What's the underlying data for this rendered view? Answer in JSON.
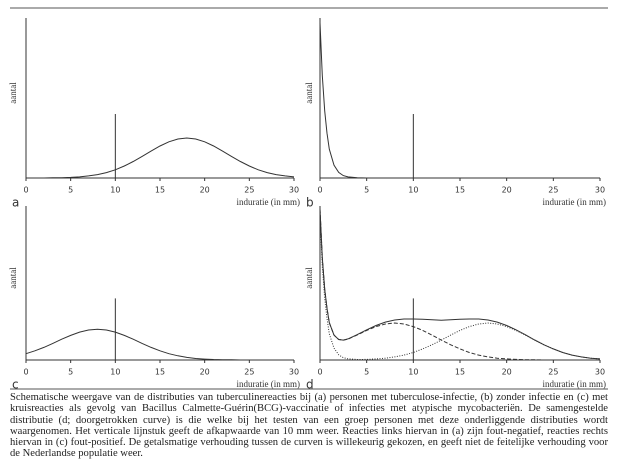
{
  "chart_data": [
    {
      "type": "line",
      "label": "a",
      "x_label": "induratie (in mm)",
      "y_label": "aantal",
      "x": [
        0,
        1,
        2,
        3,
        4,
        5,
        6,
        7,
        8,
        9,
        10,
        11,
        12,
        13,
        14,
        15,
        16,
        17,
        18,
        19,
        20,
        21,
        22,
        23,
        24,
        25,
        26,
        27,
        28,
        29,
        30
      ],
      "series": [
        {
          "dash": "solid",
          "color": "#333333",
          "values": [
            0,
            0,
            0,
            0.001,
            0.002,
            0.004,
            0.007,
            0.013,
            0.021,
            0.034,
            0.051,
            0.075,
            0.103,
            0.135,
            0.168,
            0.2,
            0.226,
            0.244,
            0.25,
            0.244,
            0.226,
            0.2,
            0.168,
            0.135,
            0.103,
            0.075,
            0.051,
            0.034,
            0.021,
            0.013,
            0.007
          ]
        }
      ],
      "xlim": [
        0,
        30
      ],
      "xticks": [
        0,
        5,
        10,
        15,
        20,
        25,
        30
      ],
      "ylim": [
        0,
        1
      ],
      "cutoff": 10
    },
    {
      "type": "line",
      "label": "b",
      "x_label": "induratie (in mm)",
      "y_label": "aantal",
      "x": [
        0,
        0.25,
        0.5,
        0.75,
        1,
        1.5,
        2,
        2.5,
        3,
        4,
        5
      ],
      "series": [
        {
          "dash": "solid",
          "color": "#333333",
          "values": [
            0.97,
            0.64,
            0.42,
            0.28,
            0.18,
            0.08,
            0.035,
            0.015,
            0.007,
            0.001,
            0
          ]
        }
      ],
      "xlim": [
        0,
        30
      ],
      "xticks": [
        0,
        5,
        10,
        15,
        20,
        25,
        30
      ],
      "ylim": [
        0,
        1
      ],
      "cutoff": 10
    },
    {
      "type": "line",
      "label": "c",
      "x_label": "induratie (in mm)",
      "y_label": "aantal",
      "x": [
        0,
        1,
        2,
        3,
        4,
        5,
        6,
        7,
        8,
        9,
        10,
        11,
        12,
        13,
        14,
        15,
        16,
        17,
        18,
        19,
        20,
        21,
        22,
        23,
        24,
        25,
        26,
        27,
        28,
        29,
        30
      ],
      "series": [
        {
          "dash": "solid",
          "color": "#333333",
          "values": [
            0.041,
            0.06,
            0.082,
            0.108,
            0.135,
            0.16,
            0.181,
            0.195,
            0.2,
            0.195,
            0.181,
            0.16,
            0.135,
            0.108,
            0.082,
            0.06,
            0.041,
            0.027,
            0.017,
            0.01,
            0.006,
            0.003,
            0.002,
            0.001,
            0,
            0,
            0,
            0,
            0,
            0,
            0
          ]
        }
      ],
      "xlim": [
        0,
        30
      ],
      "xticks": [
        0,
        5,
        10,
        15,
        20,
        25,
        30
      ],
      "ylim": [
        0,
        1
      ],
      "cutoff": 10
    },
    {
      "type": "line",
      "label": "d",
      "x_label": "induratie (in mm)",
      "y_label": "aantal",
      "x": [
        0,
        0.25,
        0.5,
        0.75,
        1,
        1.5,
        2,
        2.5,
        3,
        4,
        5,
        6,
        7,
        8,
        9,
        10,
        11,
        12,
        13,
        14,
        15,
        16,
        17,
        18,
        19,
        20,
        21,
        22,
        23,
        24,
        25,
        26,
        27,
        28,
        29,
        30
      ],
      "series": [
        {
          "dash": "dashed",
          "color": "#333333",
          "values": [
            0.979,
            0.664,
            0.46,
            0.336,
            0.242,
            0.162,
            0.133,
            0.129,
            0.136,
            0.163,
            0.192,
            0.217,
            0.234,
            0.24,
            0.234,
            0.217,
            0.192,
            0.162,
            0.129,
            0.099,
            0.072,
            0.049,
            0.032,
            0.02,
            0.012,
            0.007,
            0.004,
            0.002,
            0.001,
            0,
            0,
            0,
            0,
            0,
            0,
            0
          ]
        },
        {
          "dash": "dotted",
          "color": "#333333",
          "values": [
            0.93,
            0.61,
            0.4,
            0.27,
            0.17,
            0.077,
            0.034,
            0.015,
            0.008,
            0.003,
            0.004,
            0.007,
            0.012,
            0.02,
            0.032,
            0.049,
            0.072,
            0.099,
            0.129,
            0.162,
            0.192,
            0.217,
            0.234,
            0.24,
            0.234,
            0.217,
            0.192,
            0.162,
            0.129,
            0.099,
            0.072,
            0.049,
            0.032,
            0.02,
            0.012,
            0.007
          ]
        },
        {
          "dash": "solid",
          "color": "#333333",
          "values": [
            0.979,
            0.664,
            0.46,
            0.336,
            0.242,
            0.162,
            0.133,
            0.129,
            0.137,
            0.165,
            0.196,
            0.224,
            0.246,
            0.26,
            0.266,
            0.266,
            0.264,
            0.261,
            0.258,
            0.261,
            0.264,
            0.266,
            0.266,
            0.26,
            0.246,
            0.224,
            0.196,
            0.164,
            0.13,
            0.099,
            0.072,
            0.049,
            0.032,
            0.02,
            0.012,
            0.007
          ]
        }
      ],
      "xlim": [
        0,
        30
      ],
      "xticks": [
        0,
        5,
        10,
        15,
        20,
        25,
        30
      ],
      "ylim": [
        0,
        1
      ],
      "cutoff": 10
    }
  ],
  "caption": "Schematische weergave van de distributies van tuberculinereacties bij (a) personen met tuberculose-infectie, (b) zonder infectie en (c) met kruisreacties als gevolg van Bacillus Calmette-Guérin(BCG)-vaccinatie of infecties met atypische mycobacteriën. De samengestelde distributie (d; doorgetrokken curve) is die welke bij het testen van een groep personen met deze onderliggende distributies wordt waargenomen. Het verticale lijnstuk geeft de afkapwaarde van 10 mm weer. Reacties links hiervan in (a) zijn fout-negatief, reacties rechts hiervan in (c) fout-positief. De getalsmatige verhouding tussen de curven is willekeurig gekozen, en geeft niet de feitelijke verhouding voor de Nederlandse populatie weer."
}
